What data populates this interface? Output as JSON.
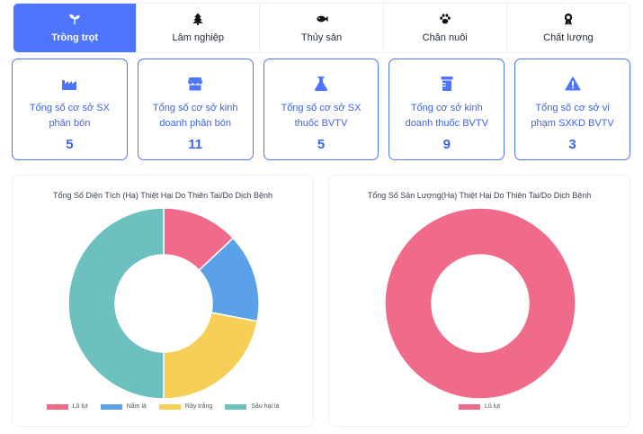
{
  "tabs": [
    {
      "label": "Trồng trọt",
      "icon": "sprout-icon",
      "active": true
    },
    {
      "label": "Lâm nghiệp",
      "icon": "tree-icon",
      "active": false
    },
    {
      "label": "Thủy sản",
      "icon": "fish-icon",
      "active": false
    },
    {
      "label": "Chăn nuôi",
      "icon": "paw-icon",
      "active": false
    },
    {
      "label": "Chất lượng",
      "icon": "award-icon",
      "active": false
    }
  ],
  "cards": [
    {
      "label": "Tổng số cơ sở SX phân bón",
      "value": "5",
      "icon": "factory-icon"
    },
    {
      "label": "Tổng số cơ sở kinh doanh phân bón",
      "value": "11",
      "icon": "store-icon"
    },
    {
      "label": "Tổng số cơ sở SX thuốc BVTV",
      "value": "5",
      "icon": "flask-icon"
    },
    {
      "label": "Tổng cơ sở kinh doanh thuốc BVTV",
      "value": "9",
      "icon": "prescription-bottle-icon"
    },
    {
      "label": "Tổng số cơ sở vi phạm SXKD BVTV",
      "value": "3",
      "icon": "warning-icon"
    }
  ],
  "colors": {
    "accent": "#4f75ff",
    "lu_lut": "#f06a8a",
    "nam_la": "#5aa1e8",
    "ray_trang": "#f6cf57",
    "sau_hai_la": "#6cc1bf"
  },
  "chart_data": [
    {
      "type": "pie",
      "variant": "doughnut",
      "title": "Tổng Số Diện Tích (Ha) Thiệt Hại Do Thiên Tai/Do Dịch Bệnh",
      "categories": [
        "Lũ lụt",
        "Nấm lá",
        "Rầy trắng",
        "Sâu hại lá"
      ],
      "values": [
        13,
        15,
        22,
        50
      ],
      "colors": [
        "#f06a8a",
        "#5aa1e8",
        "#f6cf57",
        "#6cc1bf"
      ],
      "legend": "bottom"
    },
    {
      "type": "pie",
      "variant": "doughnut",
      "title": "Tổng Số Sản Lượng(Ha) Thiệt Hại Do Thiên Tai/Do Dịch Bệnh",
      "categories": [
        "Lũ lụt"
      ],
      "values": [
        100
      ],
      "colors": [
        "#f06a8a"
      ],
      "legend": "bottom"
    }
  ]
}
